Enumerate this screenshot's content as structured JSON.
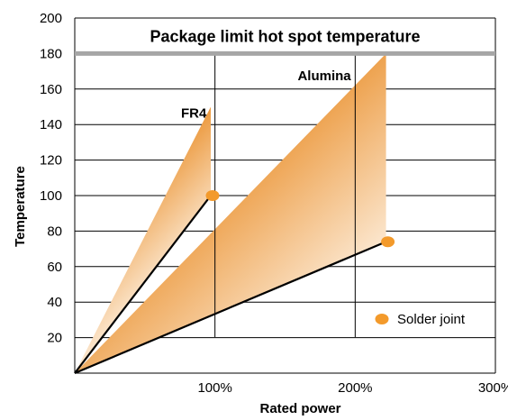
{
  "chart_data": {
    "type": "area",
    "title": "Package limit hot spot temperature",
    "xlabel": "Rated power",
    "ylabel": "Temperature",
    "xlim": [
      0,
      300
    ],
    "ylim": [
      0,
      200
    ],
    "x_ticks": [
      {
        "value": 100,
        "label": "100%"
      },
      {
        "value": 200,
        "label": "200%"
      },
      {
        "value": 300,
        "label": "300%"
      }
    ],
    "y_ticks": [
      {
        "value": 20,
        "label": "20"
      },
      {
        "value": 40,
        "label": "40"
      },
      {
        "value": 60,
        "label": "60"
      },
      {
        "value": 80,
        "label": "80"
      },
      {
        "value": 100,
        "label": "100"
      },
      {
        "value": 120,
        "label": "120"
      },
      {
        "value": 140,
        "label": "140"
      },
      {
        "value": 160,
        "label": "160"
      },
      {
        "value": 180,
        "label": "180"
      },
      {
        "value": 200,
        "label": "200"
      }
    ],
    "grid": "horizontal lines at every y tick; vertical lines at 100% and 200% within the plot area",
    "limit_line": {
      "y": 180
    },
    "series": [
      {
        "name": "FR4",
        "region": [
          [
            0,
            0
          ],
          [
            97,
            150
          ],
          [
            97,
            100
          ]
        ],
        "solder_joint_line": [
          [
            0,
            0
          ],
          [
            97,
            100
          ]
        ],
        "solder_joint_point": [
          97,
          100
        ]
      },
      {
        "name": "Alumina",
        "region": [
          [
            0,
            0
          ],
          [
            222,
            180
          ],
          [
            222,
            74
          ]
        ],
        "solder_joint_line": [
          [
            0,
            0
          ],
          [
            222,
            74
          ]
        ],
        "solder_joint_point": [
          222,
          74
        ]
      }
    ],
    "legend": {
      "label": "Solder joint",
      "position": "bottom-right"
    },
    "colors": {
      "fill_dark": "#E8861A",
      "fill_light": "#FFF8EF",
      "marker": "#F39A2B",
      "limit_line": "#A6A6A6",
      "line": "#000000"
    }
  }
}
